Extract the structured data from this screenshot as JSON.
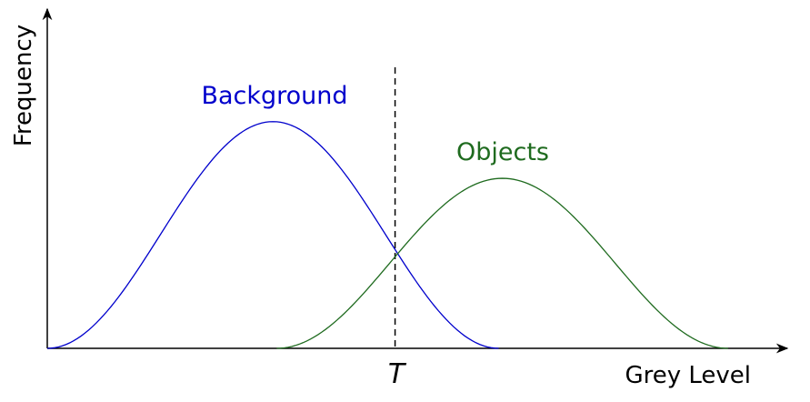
{
  "chart_data": {
    "type": "line",
    "xlabel": "Grey Level",
    "ylabel": "Frequency",
    "threshold_label": "T",
    "threshold_x": 0.47,
    "xlim": [
      0,
      1
    ],
    "ylim": [
      0,
      1
    ],
    "series": [
      {
        "name": "Background",
        "color": "#0000cc",
        "shape": "raised-cosine",
        "range": [
          0,
          0.61
        ],
        "peak": 0.76
      },
      {
        "name": "Objects",
        "color": "#1f6b1f",
        "shape": "raised-cosine",
        "range": [
          0.31,
          0.92
        ],
        "peak": 0.57
      }
    ]
  }
}
